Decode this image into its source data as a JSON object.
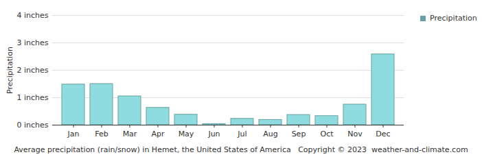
{
  "chart_data": {
    "type": "bar",
    "title": "Average precipitation (rain/snow) in Hemet, the United States of America",
    "annotations": [
      "Copyright © 2023  weather-and-climate.com"
    ],
    "y_label": "Precipitation",
    "categories": [
      "Jan",
      "Feb",
      "Mar",
      "Apr",
      "May",
      "Jun",
      "Jul",
      "Aug",
      "Sep",
      "Oct",
      "Nov",
      "Dec"
    ],
    "series": [
      {
        "name": "Precipitation",
        "color": "#8edcdf",
        "values": [
          1.48,
          1.5,
          1.05,
          0.63,
          0.38,
          0.04,
          0.23,
          0.19,
          0.37,
          0.33,
          0.75,
          2.58
        ]
      }
    ],
    "ylim": [
      0,
      4
    ],
    "yticks": [
      {
        "value": 0,
        "label": "0 inches"
      },
      {
        "value": 1,
        "label": "1 inches"
      },
      {
        "value": 2,
        "label": "2 inches"
      },
      {
        "value": 3,
        "label": "3 inches"
      },
      {
        "value": 4,
        "label": "4 inches"
      }
    ],
    "grid": true,
    "legend": "right"
  }
}
